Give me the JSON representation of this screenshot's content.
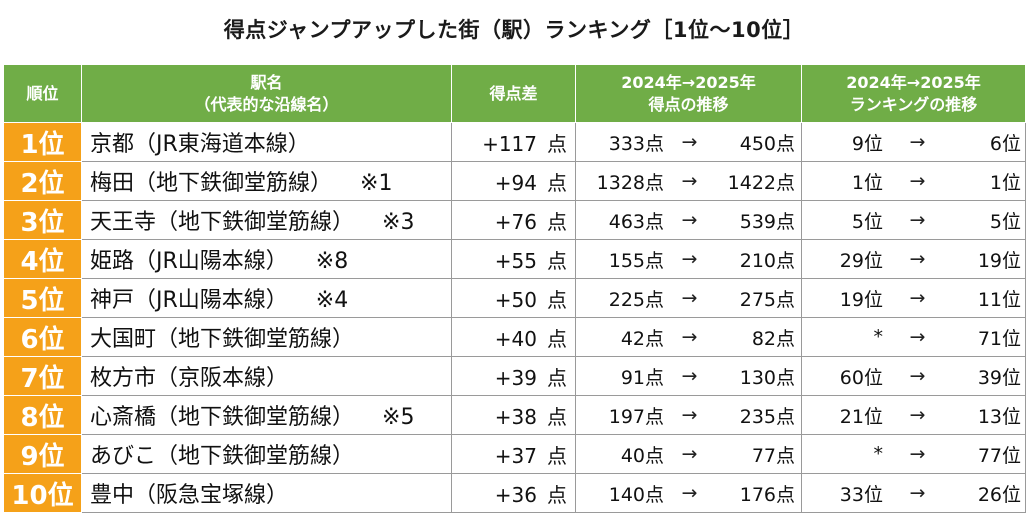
{
  "title": "得点ジャンプアップした街（駅）ランキング［1位～10位］",
  "header": {
    "rank": "順位",
    "station_line1": "駅名",
    "station_line2": "（代表的な沿線名）",
    "diff": "得点差",
    "score_line1": "2024年→2025年",
    "score_line2": "得点の推移",
    "ranking_line1": "2024年→2025年",
    "ranking_line2": "ランキングの推移"
  },
  "arrow": "→",
  "rows": [
    {
      "rank": "1位",
      "station": "京都（JR東海道本線）",
      "note": "",
      "diff": "+117",
      "diff_unit": "点",
      "score_from": "333点",
      "score_to": "450点",
      "rank_from": "9位",
      "rank_to": "6位"
    },
    {
      "rank": "2位",
      "station": "梅田（地下鉄御堂筋線）",
      "note": "※1",
      "diff": "+94",
      "diff_unit": "点",
      "score_from": "1328点",
      "score_to": "1422点",
      "rank_from": "1位",
      "rank_to": "1位"
    },
    {
      "rank": "3位",
      "station": "天王寺（地下鉄御堂筋線）",
      "note": "※3",
      "diff": "+76",
      "diff_unit": "点",
      "score_from": "463点",
      "score_to": "539点",
      "rank_from": "5位",
      "rank_to": "5位"
    },
    {
      "rank": "4位",
      "station": "姫路（JR山陽本線）",
      "note": "※8",
      "diff": "+55",
      "diff_unit": "点",
      "score_from": "155点",
      "score_to": "210点",
      "rank_from": "29位",
      "rank_to": "19位"
    },
    {
      "rank": "5位",
      "station": "神戸（JR山陽本線）",
      "note": "※4",
      "diff": "+50",
      "diff_unit": "点",
      "score_from": "225点",
      "score_to": "275点",
      "rank_from": "19位",
      "rank_to": "11位"
    },
    {
      "rank": "6位",
      "station": "大国町（地下鉄御堂筋線）",
      "note": "",
      "diff": "+40",
      "diff_unit": "点",
      "score_from": "42点",
      "score_to": "82点",
      "rank_from": "*",
      "rank_to": "71位"
    },
    {
      "rank": "7位",
      "station": "枚方市（京阪本線）",
      "note": "",
      "diff": "+39",
      "diff_unit": "点",
      "score_from": "91点",
      "score_to": "130点",
      "rank_from": "60位",
      "rank_to": "39位"
    },
    {
      "rank": "8位",
      "station": "心斎橋（地下鉄御堂筋線）",
      "note": "※5",
      "diff": "+38",
      "diff_unit": "点",
      "score_from": "197点",
      "score_to": "235点",
      "rank_from": "21位",
      "rank_to": "13位"
    },
    {
      "rank": "9位",
      "station": "あびこ（地下鉄御堂筋線）",
      "note": "",
      "diff": "+37",
      "diff_unit": "点",
      "score_from": "40点",
      "score_to": "77点",
      "rank_from": "*",
      "rank_to": "77位"
    },
    {
      "rank": "10位",
      "station": "豊中（阪急宝塚線）",
      "note": "",
      "diff": "+36",
      "diff_unit": "点",
      "score_from": "140点",
      "score_to": "176点",
      "rank_from": "33位",
      "rank_to": "26位"
    }
  ],
  "colors": {
    "header_bg": "#70ad47",
    "rank_bg": "#f5a119"
  }
}
